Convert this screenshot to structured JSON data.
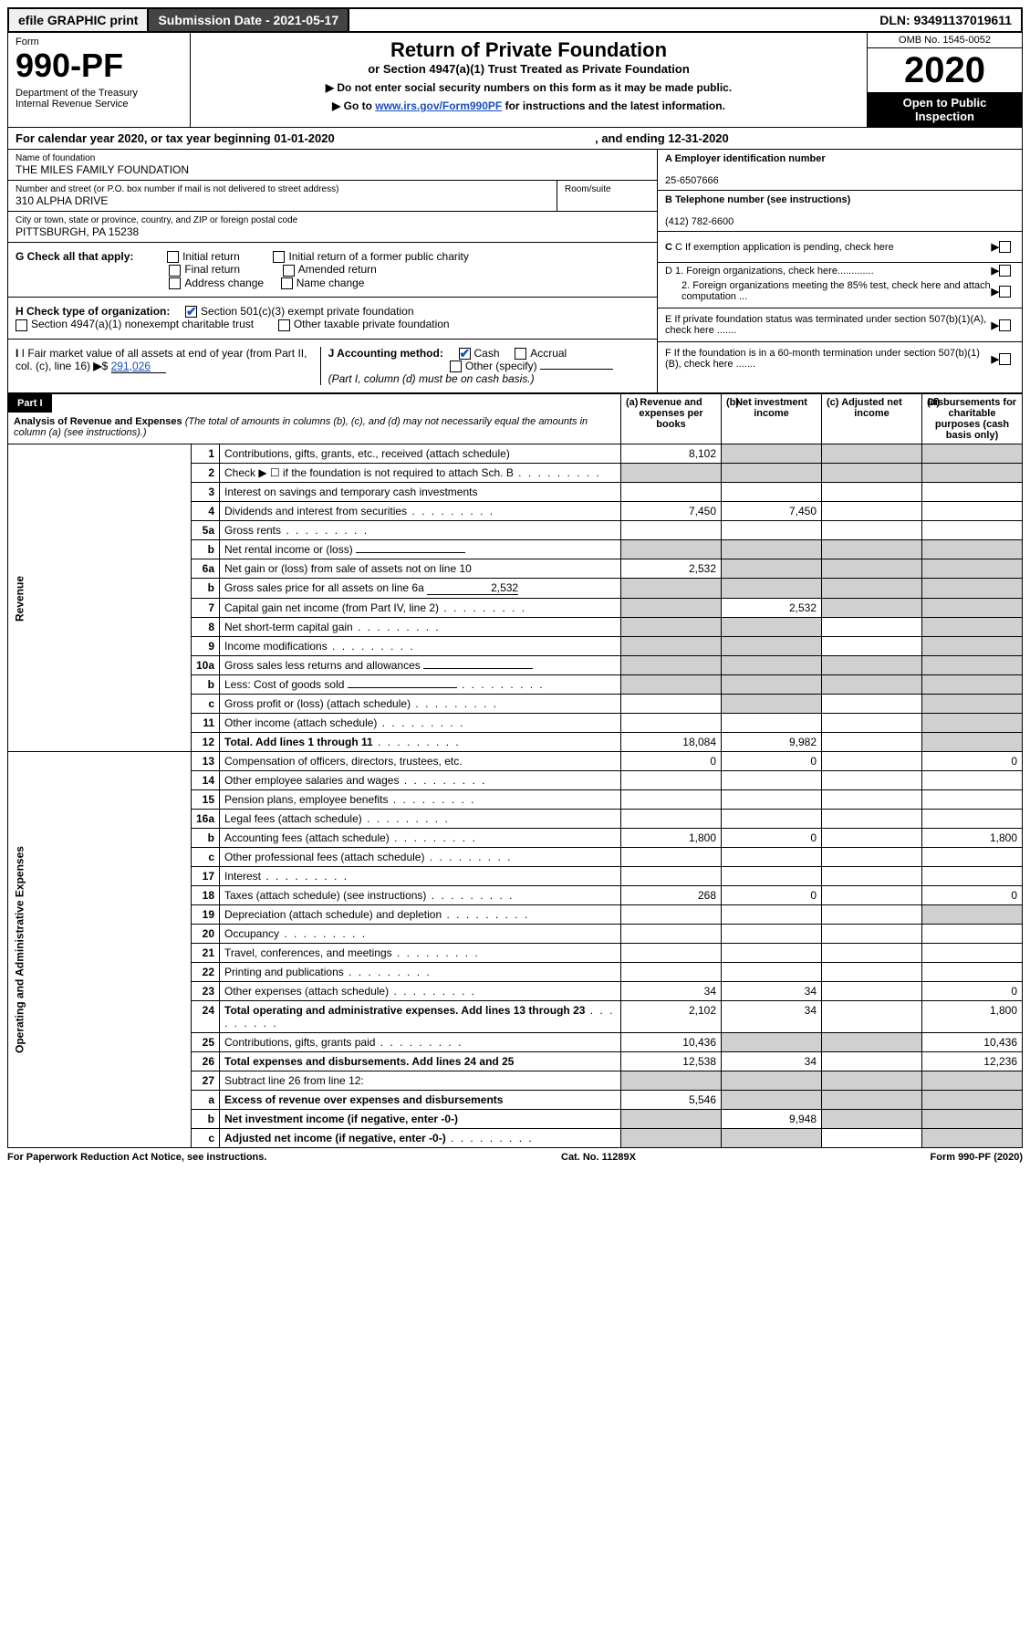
{
  "top": {
    "efile": "efile GRAPHIC print",
    "submission": "Submission Date - 2021-05-17",
    "dln": "DLN: 93491137019611"
  },
  "header": {
    "form_label": "Form",
    "form_num": "990-PF",
    "dept": "Department of the Treasury",
    "irs": "Internal Revenue Service",
    "title": "Return of Private Foundation",
    "subtitle": "or Section 4947(a)(1) Trust Treated as Private Foundation",
    "note1": "▶ Do not enter social security numbers on this form as it may be made public.",
    "note2_pre": "▶ Go to ",
    "note2_link": "www.irs.gov/Form990PF",
    "note2_post": " for instructions and the latest information.",
    "omb": "OMB No. 1545-0052",
    "year": "2020",
    "otp1": "Open to Public",
    "otp2": "Inspection"
  },
  "calyear": {
    "text": "For calendar year 2020, or tax year beginning 01-01-2020",
    "ending": ", and ending 12-31-2020"
  },
  "foundation": {
    "name_lbl": "Name of foundation",
    "name": "THE MILES FAMILY FOUNDATION",
    "addr_lbl": "Number and street (or P.O. box number if mail is not delivered to street address)",
    "addr": "310 ALPHA DRIVE",
    "room_lbl": "Room/suite",
    "city_lbl": "City or town, state or province, country, and ZIP or foreign postal code",
    "city": "PITTSBURGH, PA  15238",
    "a_lbl": "A Employer identification number",
    "a_val": "25-6507666",
    "b_lbl": "B Telephone number (see instructions)",
    "b_val": "(412) 782-6600",
    "c_lbl": "C If exemption application is pending, check here",
    "d1": "D 1. Foreign organizations, check here.............",
    "d2": "2. Foreign organizations meeting the 85% test, check here and attach computation ...",
    "e": "E  If private foundation status was terminated under section 507(b)(1)(A), check here .......",
    "f": "F  If the foundation is in a 60-month termination under section 507(b)(1)(B), check here .......",
    "g_lbl": "G Check all that apply:",
    "g_opts": [
      "Initial return",
      "Final return",
      "Address change",
      "Initial return of a former public charity",
      "Amended return",
      "Name change"
    ],
    "h_lbl": "H Check type of organization:",
    "h_501c3": "Section 501(c)(3) exempt private foundation",
    "h_4947": "Section 4947(a)(1) nonexempt charitable trust",
    "h_other": "Other taxable private foundation",
    "i_lbl": "I Fair market value of all assets at end of year (from Part II, col. (c), line 16)",
    "i_val": "291,026",
    "j_lbl": "J Accounting method:",
    "j_cash": "Cash",
    "j_accrual": "Accrual",
    "j_other": "Other (specify)",
    "j_note": "(Part I, column (d) must be on cash basis.)"
  },
  "part1": {
    "label": "Part I",
    "title": "Analysis of Revenue and Expenses",
    "title_note": "(The total of amounts in columns (b), (c), and (d) may not necessarily equal the amounts in column (a) (see instructions).)",
    "col_a": "Revenue and expenses per books",
    "col_b": "Net investment income",
    "col_c": "Adjusted net income",
    "col_d": "Disbursements for charitable purposes (cash basis only)",
    "side_rev": "Revenue",
    "side_exp": "Operating and Administrative Expenses"
  },
  "rows": [
    {
      "n": "1",
      "desc": "Contributions, gifts, grants, etc., received (attach schedule)",
      "a": "8,102",
      "b": "",
      "c": "",
      "d": "",
      "shade": [
        "b",
        "c",
        "d"
      ]
    },
    {
      "n": "2",
      "desc": "Check ▶ ☐ if the foundation is not required to attach Sch. B",
      "dots": true,
      "noamt": true,
      "shade": [
        "a",
        "b",
        "c",
        "d"
      ]
    },
    {
      "n": "3",
      "desc": "Interest on savings and temporary cash investments"
    },
    {
      "n": "4",
      "desc": "Dividends and interest from securities",
      "dots": true,
      "a": "7,450",
      "b": "7,450"
    },
    {
      "n": "5a",
      "desc": "Gross rents",
      "dots": true
    },
    {
      "n": "b",
      "desc": "Net rental income or (loss)",
      "inline": true,
      "shade": [
        "a",
        "b",
        "c",
        "d"
      ]
    },
    {
      "n": "6a",
      "desc": "Net gain or (loss) from sale of assets not on line 10",
      "a": "2,532",
      "shade": [
        "b",
        "c",
        "d"
      ]
    },
    {
      "n": "b",
      "desc": "Gross sales price for all assets on line 6a",
      "inline_val": "2,532",
      "shade": [
        "a",
        "b",
        "c",
        "d"
      ]
    },
    {
      "n": "7",
      "desc": "Capital gain net income (from Part IV, line 2)",
      "dots": true,
      "b": "2,532",
      "shade": [
        "a",
        "c",
        "d"
      ]
    },
    {
      "n": "8",
      "desc": "Net short-term capital gain",
      "dots": true,
      "shade": [
        "a",
        "b",
        "d"
      ]
    },
    {
      "n": "9",
      "desc": "Income modifications",
      "dots": true,
      "shade": [
        "a",
        "b",
        "d"
      ]
    },
    {
      "n": "10a",
      "desc": "Gross sales less returns and allowances",
      "inline": true,
      "shade": [
        "a",
        "b",
        "c",
        "d"
      ]
    },
    {
      "n": "b",
      "desc": "Less: Cost of goods sold",
      "dots": true,
      "inline": true,
      "shade": [
        "a",
        "b",
        "c",
        "d"
      ]
    },
    {
      "n": "c",
      "desc": "Gross profit or (loss) (attach schedule)",
      "dots": true,
      "shade": [
        "b",
        "d"
      ]
    },
    {
      "n": "11",
      "desc": "Other income (attach schedule)",
      "dots": true,
      "shade": [
        "d"
      ]
    },
    {
      "n": "12",
      "desc": "Total. Add lines 1 through 11",
      "dots": true,
      "bold": true,
      "a": "18,084",
      "b": "9,982",
      "shade": [
        "d"
      ]
    },
    {
      "n": "13",
      "desc": "Compensation of officers, directors, trustees, etc.",
      "a": "0",
      "b": "0",
      "d": "0",
      "section": "exp"
    },
    {
      "n": "14",
      "desc": "Other employee salaries and wages",
      "dots": true
    },
    {
      "n": "15",
      "desc": "Pension plans, employee benefits",
      "dots": true
    },
    {
      "n": "16a",
      "desc": "Legal fees (attach schedule)",
      "dots": true
    },
    {
      "n": "b",
      "desc": "Accounting fees (attach schedule)",
      "dots": true,
      "a": "1,800",
      "b": "0",
      "d": "1,800"
    },
    {
      "n": "c",
      "desc": "Other professional fees (attach schedule)",
      "dots": true
    },
    {
      "n": "17",
      "desc": "Interest",
      "dots": true
    },
    {
      "n": "18",
      "desc": "Taxes (attach schedule) (see instructions)",
      "dots": true,
      "a": "268",
      "b": "0",
      "d": "0"
    },
    {
      "n": "19",
      "desc": "Depreciation (attach schedule) and depletion",
      "dots": true,
      "shade": [
        "d"
      ]
    },
    {
      "n": "20",
      "desc": "Occupancy",
      "dots": true
    },
    {
      "n": "21",
      "desc": "Travel, conferences, and meetings",
      "dots": true
    },
    {
      "n": "22",
      "desc": "Printing and publications",
      "dots": true
    },
    {
      "n": "23",
      "desc": "Other expenses (attach schedule)",
      "dots": true,
      "a": "34",
      "b": "34",
      "d": "0"
    },
    {
      "n": "24",
      "desc": "Total operating and administrative expenses. Add lines 13 through 23",
      "dots": true,
      "bold": true,
      "a": "2,102",
      "b": "34",
      "d": "1,800",
      "twoLine": true
    },
    {
      "n": "25",
      "desc": "Contributions, gifts, grants paid",
      "dots": true,
      "a": "10,436",
      "d": "10,436",
      "shade": [
        "b",
        "c"
      ]
    },
    {
      "n": "26",
      "desc": "Total expenses and disbursements. Add lines 24 and 25",
      "bold": true,
      "a": "12,538",
      "b": "34",
      "d": "12,236"
    },
    {
      "n": "27",
      "desc": "Subtract line 26 from line 12:",
      "shade": [
        "a",
        "b",
        "c",
        "d"
      ],
      "section": "final"
    },
    {
      "n": "a",
      "desc": "Excess of revenue over expenses and disbursements",
      "bold": true,
      "a": "5,546",
      "shade": [
        "b",
        "c",
        "d"
      ]
    },
    {
      "n": "b",
      "desc": "Net investment income (if negative, enter -0-)",
      "bold": true,
      "b": "9,948",
      "shade": [
        "a",
        "c",
        "d"
      ]
    },
    {
      "n": "c",
      "desc": "Adjusted net income (if negative, enter -0-)",
      "dots": true,
      "bold": true,
      "shade": [
        "a",
        "b",
        "d"
      ]
    }
  ],
  "footer": {
    "left": "For Paperwork Reduction Act Notice, see instructions.",
    "mid": "Cat. No. 11289X",
    "right": "Form 990-PF (2020)"
  }
}
